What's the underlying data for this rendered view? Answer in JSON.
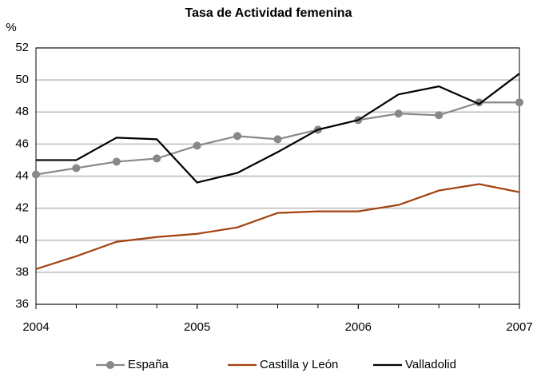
{
  "chart_data": {
    "type": "line",
    "title": "Tasa de Actividad femenina",
    "y_label": "%",
    "x": [
      2004,
      2004.25,
      2004.5,
      2004.75,
      2005,
      2005.25,
      2005.5,
      2005.75,
      2006,
      2006.25,
      2006.5,
      2006.75,
      2007
    ],
    "xlim": [
      2004,
      2007
    ],
    "xticks": [
      2004,
      2005,
      2006,
      2007
    ],
    "ylim": [
      36,
      52
    ],
    "yticks": [
      36,
      38,
      40,
      42,
      44,
      46,
      48,
      50,
      52
    ],
    "grid": true,
    "series": [
      {
        "name": "España",
        "color": "#888888",
        "marker": true,
        "values": [
          44.1,
          44.5,
          44.9,
          45.1,
          45.9,
          46.5,
          46.3,
          46.9,
          47.5,
          47.9,
          47.8,
          48.6,
          48.6
        ]
      },
      {
        "name": "Castilla y León",
        "color": "#a3400f",
        "marker": false,
        "values": [
          38.2,
          39.0,
          39.9,
          40.2,
          40.4,
          40.8,
          41.7,
          41.8,
          41.8,
          42.2,
          43.1,
          43.5,
          43.0
        ]
      },
      {
        "name": "Valladolid",
        "color": "#000000",
        "marker": false,
        "values": [
          45.0,
          45.0,
          46.4,
          46.3,
          43.6,
          44.2,
          45.5,
          46.9,
          47.5,
          49.1,
          49.6,
          48.5,
          50.4
        ]
      }
    ]
  }
}
